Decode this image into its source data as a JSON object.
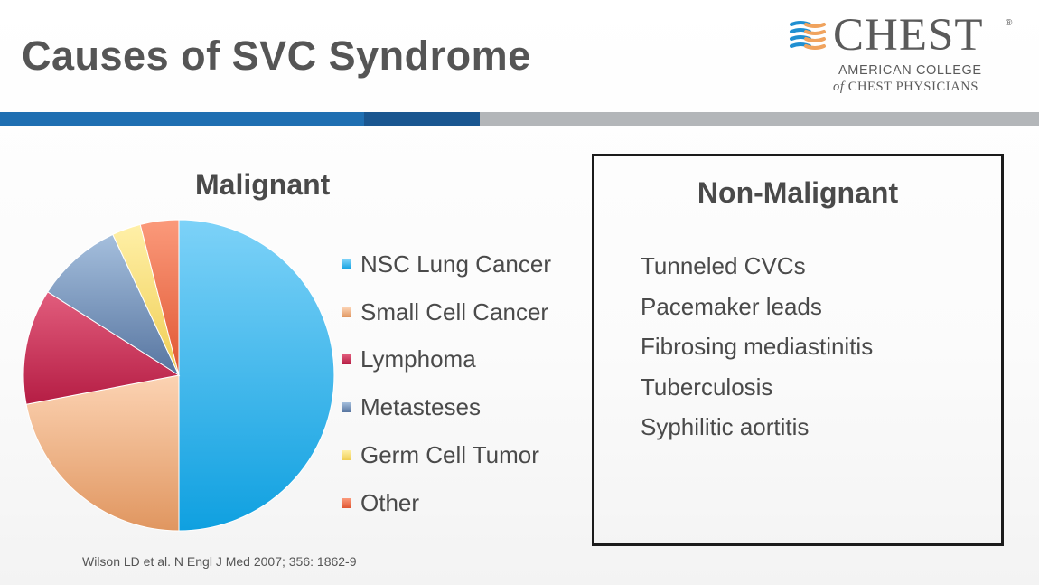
{
  "slide": {
    "title": "Causes of SVC Syndrome",
    "citation": "Wilson LD et al. N Engl J Med 2007; 356: 1862-9"
  },
  "logo": {
    "icon": "chest-logo-mark-icon",
    "word": "CHEST",
    "registered": "®",
    "line1": "AMERICAN COLLEGE",
    "line2_of": "of",
    "line2_rest": "CHEST PHYSICIANS"
  },
  "colors": {
    "band_primary": "#1f6fb2",
    "band_dark": "#1a5690",
    "band_gray": "#b3b6b9"
  },
  "chart_data": {
    "type": "pie",
    "title": "Malignant",
    "legend_position": "right",
    "categories": [
      "NSC Lung Cancer",
      "Small Cell Cancer",
      "Lymphoma",
      "Metasteses",
      "Germ Cell Tumor",
      "Other"
    ],
    "values": [
      50,
      22,
      12,
      9,
      3,
      4
    ],
    "colors": [
      "#2aaee8",
      "#efa877",
      "#c62a52",
      "#6f8fb8",
      "#f7dc6f",
      "#ee6a45"
    ],
    "light_colors": [
      "#7dd2f8",
      "#fcd3b3",
      "#e25d7d",
      "#a5bfdd",
      "#fff0a8",
      "#fb9a7b"
    ],
    "dark_colors": [
      "#0fa0e0",
      "#e09660",
      "#b51d44",
      "#5775a0",
      "#efcd52",
      "#e05632"
    ]
  },
  "non_malignant": {
    "title": "Non-Malignant",
    "items": [
      "Tunneled CVCs",
      "Pacemaker leads",
      "Fibrosing mediastinitis",
      "Tuberculosis",
      "Syphilitic aortitis"
    ]
  }
}
